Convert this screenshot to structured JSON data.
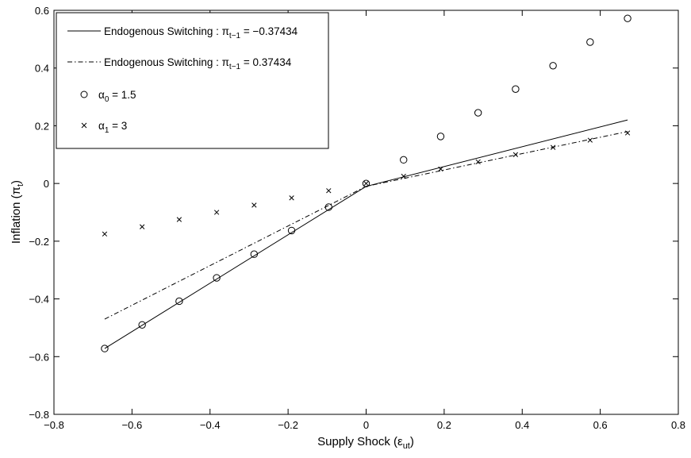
{
  "chart_data": {
    "type": "line",
    "title": "",
    "xlabel": "Supply Shock (ε",
    "xlabel_sub": "ut",
    "xlabel_close": ")",
    "ylabel": "Inflation (π",
    "ylabel_sub": "t",
    "ylabel_close": ")",
    "xlim": [
      -0.8,
      0.8
    ],
    "ylim": [
      -0.8,
      0.6
    ],
    "xticks": [
      -0.8,
      -0.6,
      -0.4,
      -0.2,
      0,
      0.2,
      0.4,
      0.6,
      0.8
    ],
    "yticks": [
      -0.8,
      -0.6,
      -0.4,
      -0.2,
      0,
      0.2,
      0.4,
      0.6
    ],
    "xtick_labels": [
      "−0.8",
      "−0.6",
      "−0.4",
      "−0.2",
      "0",
      "0.2",
      "0.4",
      "0.6",
      "0.8"
    ],
    "ytick_labels": [
      "−0.8",
      "−0.6",
      "−0.4",
      "−0.2",
      "0",
      "0.2",
      "0.4",
      "0.6"
    ],
    "grid": false,
    "legend_position": "top-left",
    "series": [
      {
        "name": "Endogenous Switching : π",
        "name_sub": "t−1",
        "name_suffix": " = −0.37434",
        "style": "solid",
        "color": "#000000",
        "x": [
          -0.67,
          0,
          0.67
        ],
        "y": [
          -0.572,
          -0.01,
          0.22
        ]
      },
      {
        "name": "Endogenous Switching : π",
        "name_sub": "t−1",
        "name_suffix": " = 0.37434",
        "style": "dashdot",
        "color": "#000000",
        "x": [
          -0.67,
          0,
          0.67
        ],
        "y": [
          -0.47,
          -0.01,
          0.18
        ]
      },
      {
        "name": "α",
        "name_sub": "0",
        "name_suffix": " = 1.5",
        "style": "marker-circle",
        "color": "#000000",
        "x": [
          -0.67,
          -0.574,
          -0.479,
          -0.383,
          -0.287,
          -0.191,
          -0.096,
          0,
          0.096,
          0.191,
          0.287,
          0.383,
          0.479,
          0.574,
          0.67
        ],
        "y": [
          -0.572,
          -0.49,
          -0.408,
          -0.327,
          -0.245,
          -0.163,
          -0.082,
          0,
          0.082,
          0.163,
          0.245,
          0.327,
          0.408,
          0.49,
          0.572
        ]
      },
      {
        "name": "α",
        "name_sub": "1",
        "name_suffix": " = 3",
        "style": "marker-x",
        "color": "#000000",
        "x": [
          -0.67,
          -0.574,
          -0.479,
          -0.383,
          -0.287,
          -0.191,
          -0.096,
          0,
          0.096,
          0.191,
          0.287,
          0.383,
          0.479,
          0.574,
          0.67
        ],
        "y": [
          -0.175,
          -0.15,
          -0.125,
          -0.1,
          -0.075,
          -0.05,
          -0.025,
          0,
          0.025,
          0.05,
          0.075,
          0.1,
          0.125,
          0.15,
          0.175
        ]
      }
    ]
  }
}
